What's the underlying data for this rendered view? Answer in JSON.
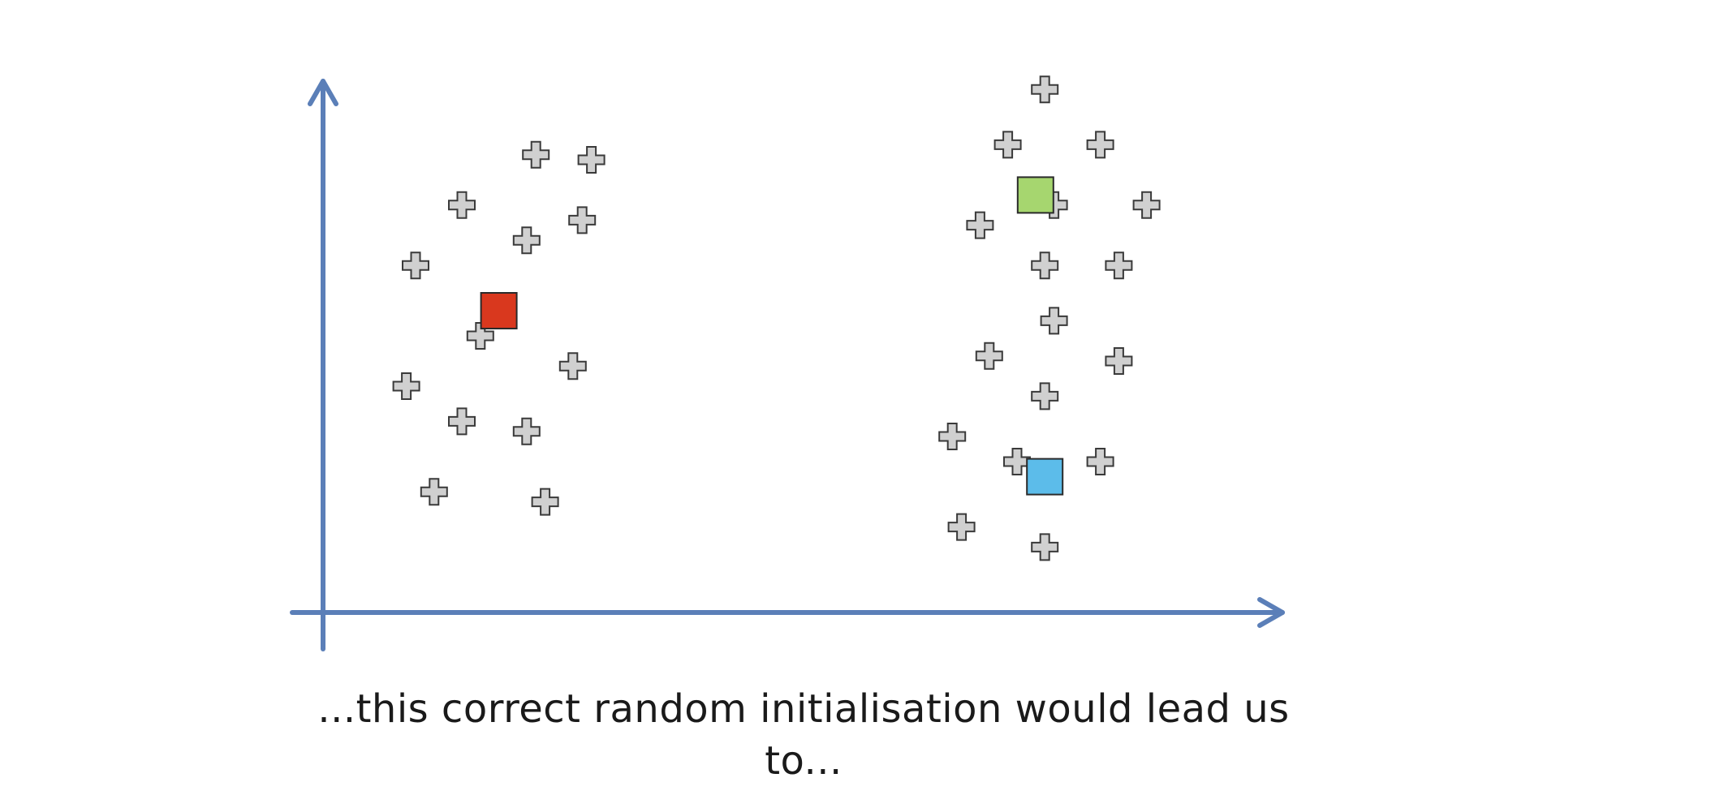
{
  "caption": "...this correct random initialisation would lead us to...",
  "colors": {
    "axis": "#5b7fb8",
    "point_fill": "#d0d0d0",
    "point_stroke": "#3a3a3a",
    "centroid_red": "#d9381e",
    "centroid_green": "#a6d66f",
    "centroid_blue": "#5cbcea"
  },
  "diagram": {
    "type": "scatter",
    "point_symbol": "plus-icon",
    "points": [
      [
        0.23,
        0.91
      ],
      [
        0.29,
        0.9
      ],
      [
        0.15,
        0.81
      ],
      [
        0.28,
        0.78
      ],
      [
        0.22,
        0.74
      ],
      [
        0.1,
        0.69
      ],
      [
        0.17,
        0.55
      ],
      [
        0.27,
        0.49
      ],
      [
        0.09,
        0.45
      ],
      [
        0.15,
        0.38
      ],
      [
        0.22,
        0.36
      ],
      [
        0.12,
        0.24
      ],
      [
        0.24,
        0.22
      ],
      [
        0.78,
        1.04
      ],
      [
        0.74,
        0.93
      ],
      [
        0.84,
        0.93
      ],
      [
        0.79,
        0.81
      ],
      [
        0.89,
        0.81
      ],
      [
        0.71,
        0.77
      ],
      [
        0.78,
        0.69
      ],
      [
        0.86,
        0.69
      ],
      [
        0.79,
        0.58
      ],
      [
        0.72,
        0.51
      ],
      [
        0.86,
        0.5
      ],
      [
        0.78,
        0.43
      ],
      [
        0.68,
        0.35
      ],
      [
        0.75,
        0.3
      ],
      [
        0.84,
        0.3
      ],
      [
        0.69,
        0.17
      ],
      [
        0.78,
        0.13
      ]
    ],
    "centroids": [
      {
        "name": "centroid-red",
        "color": "#d9381e",
        "xy": [
          0.19,
          0.6
        ]
      },
      {
        "name": "centroid-green",
        "color": "#a6d66f",
        "xy": [
          0.77,
          0.83
        ]
      },
      {
        "name": "centroid-blue",
        "color": "#5cbcea",
        "xy": [
          0.78,
          0.27
        ]
      }
    ]
  }
}
